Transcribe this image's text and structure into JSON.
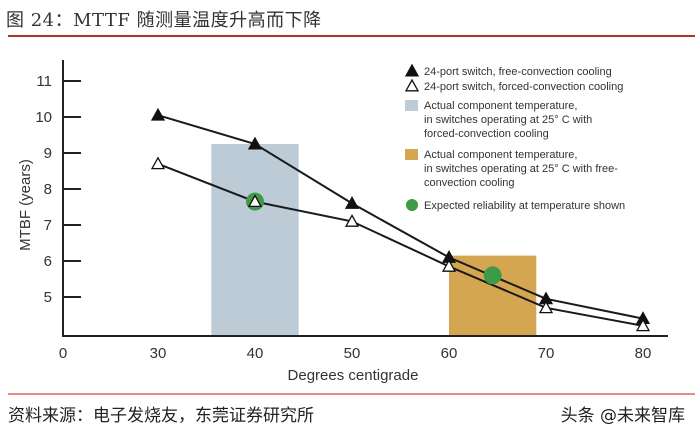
{
  "header": {
    "title": "图 24：MTTF 随测量温度升高而下降"
  },
  "footer": {
    "source": "资料来源：电子发烧友，东莞证券研究所",
    "watermark": "头条 @未来智库"
  },
  "colors": {
    "title_rule": "#b3302e",
    "footer_rule": "#e88a88",
    "blue_band": "#bccbd5",
    "orange_band": "#d4a651",
    "green_dot": "#3f9a48",
    "line": "#1a1a1a"
  },
  "chart_data": {
    "type": "line",
    "title": "",
    "xlabel": "Degrees centigrade",
    "ylabel": "MTBF (years)",
    "x": [
      30,
      40,
      50,
      60,
      70,
      80
    ],
    "x_tick_labels": [
      "0",
      "30",
      "40",
      "50",
      "60",
      "70",
      "80"
    ],
    "y_tick_labels": [
      "5",
      "6",
      "7",
      "8",
      "9",
      "10",
      "11"
    ],
    "ylim": [
      4,
      11.5
    ],
    "grid": false,
    "legend_position": "upper right",
    "series": [
      {
        "name": "24-port switch, free-convection cooling",
        "marker": "filled-triangle",
        "values": [
          10.05,
          9.25,
          7.6,
          6.1,
          4.95,
          4.4
        ]
      },
      {
        "name": "24-port switch, forced-convection cooling",
        "marker": "open-triangle",
        "values": [
          8.7,
          7.65,
          7.1,
          5.85,
          4.7,
          4.2
        ]
      }
    ],
    "bands": [
      {
        "name": "Actual component temperature, in switches operating at 25° C with forced-convection cooling",
        "x_range": [
          35.5,
          44.5
        ],
        "top": 9.25,
        "color": "#bccbd5"
      },
      {
        "name": "Actual component temperature, in switches operating at 25° C with free-convection cooling",
        "x_range": [
          60,
          69
        ],
        "top": 6.15,
        "color": "#d4a651"
      }
    ],
    "points": [
      {
        "name": "Expected reliability at temperature shown",
        "x": 40,
        "y": 7.65
      },
      {
        "name": "Expected reliability at temperature shown",
        "x": 64.5,
        "y": 5.6
      }
    ],
    "legend": [
      {
        "label": "24-port switch, free-convection cooling"
      },
      {
        "label": "24-port switch, forced-convection cooling"
      },
      {
        "lines": [
          "Actual component temperature,",
          "in switches operating at 25° C with",
          "forced-convection cooling"
        ]
      },
      {
        "lines": [
          "Actual component temperature,",
          "in switches operating at 25° C with free-",
          "convection cooling"
        ]
      },
      {
        "label": "Expected reliability at temperature shown"
      }
    ]
  }
}
